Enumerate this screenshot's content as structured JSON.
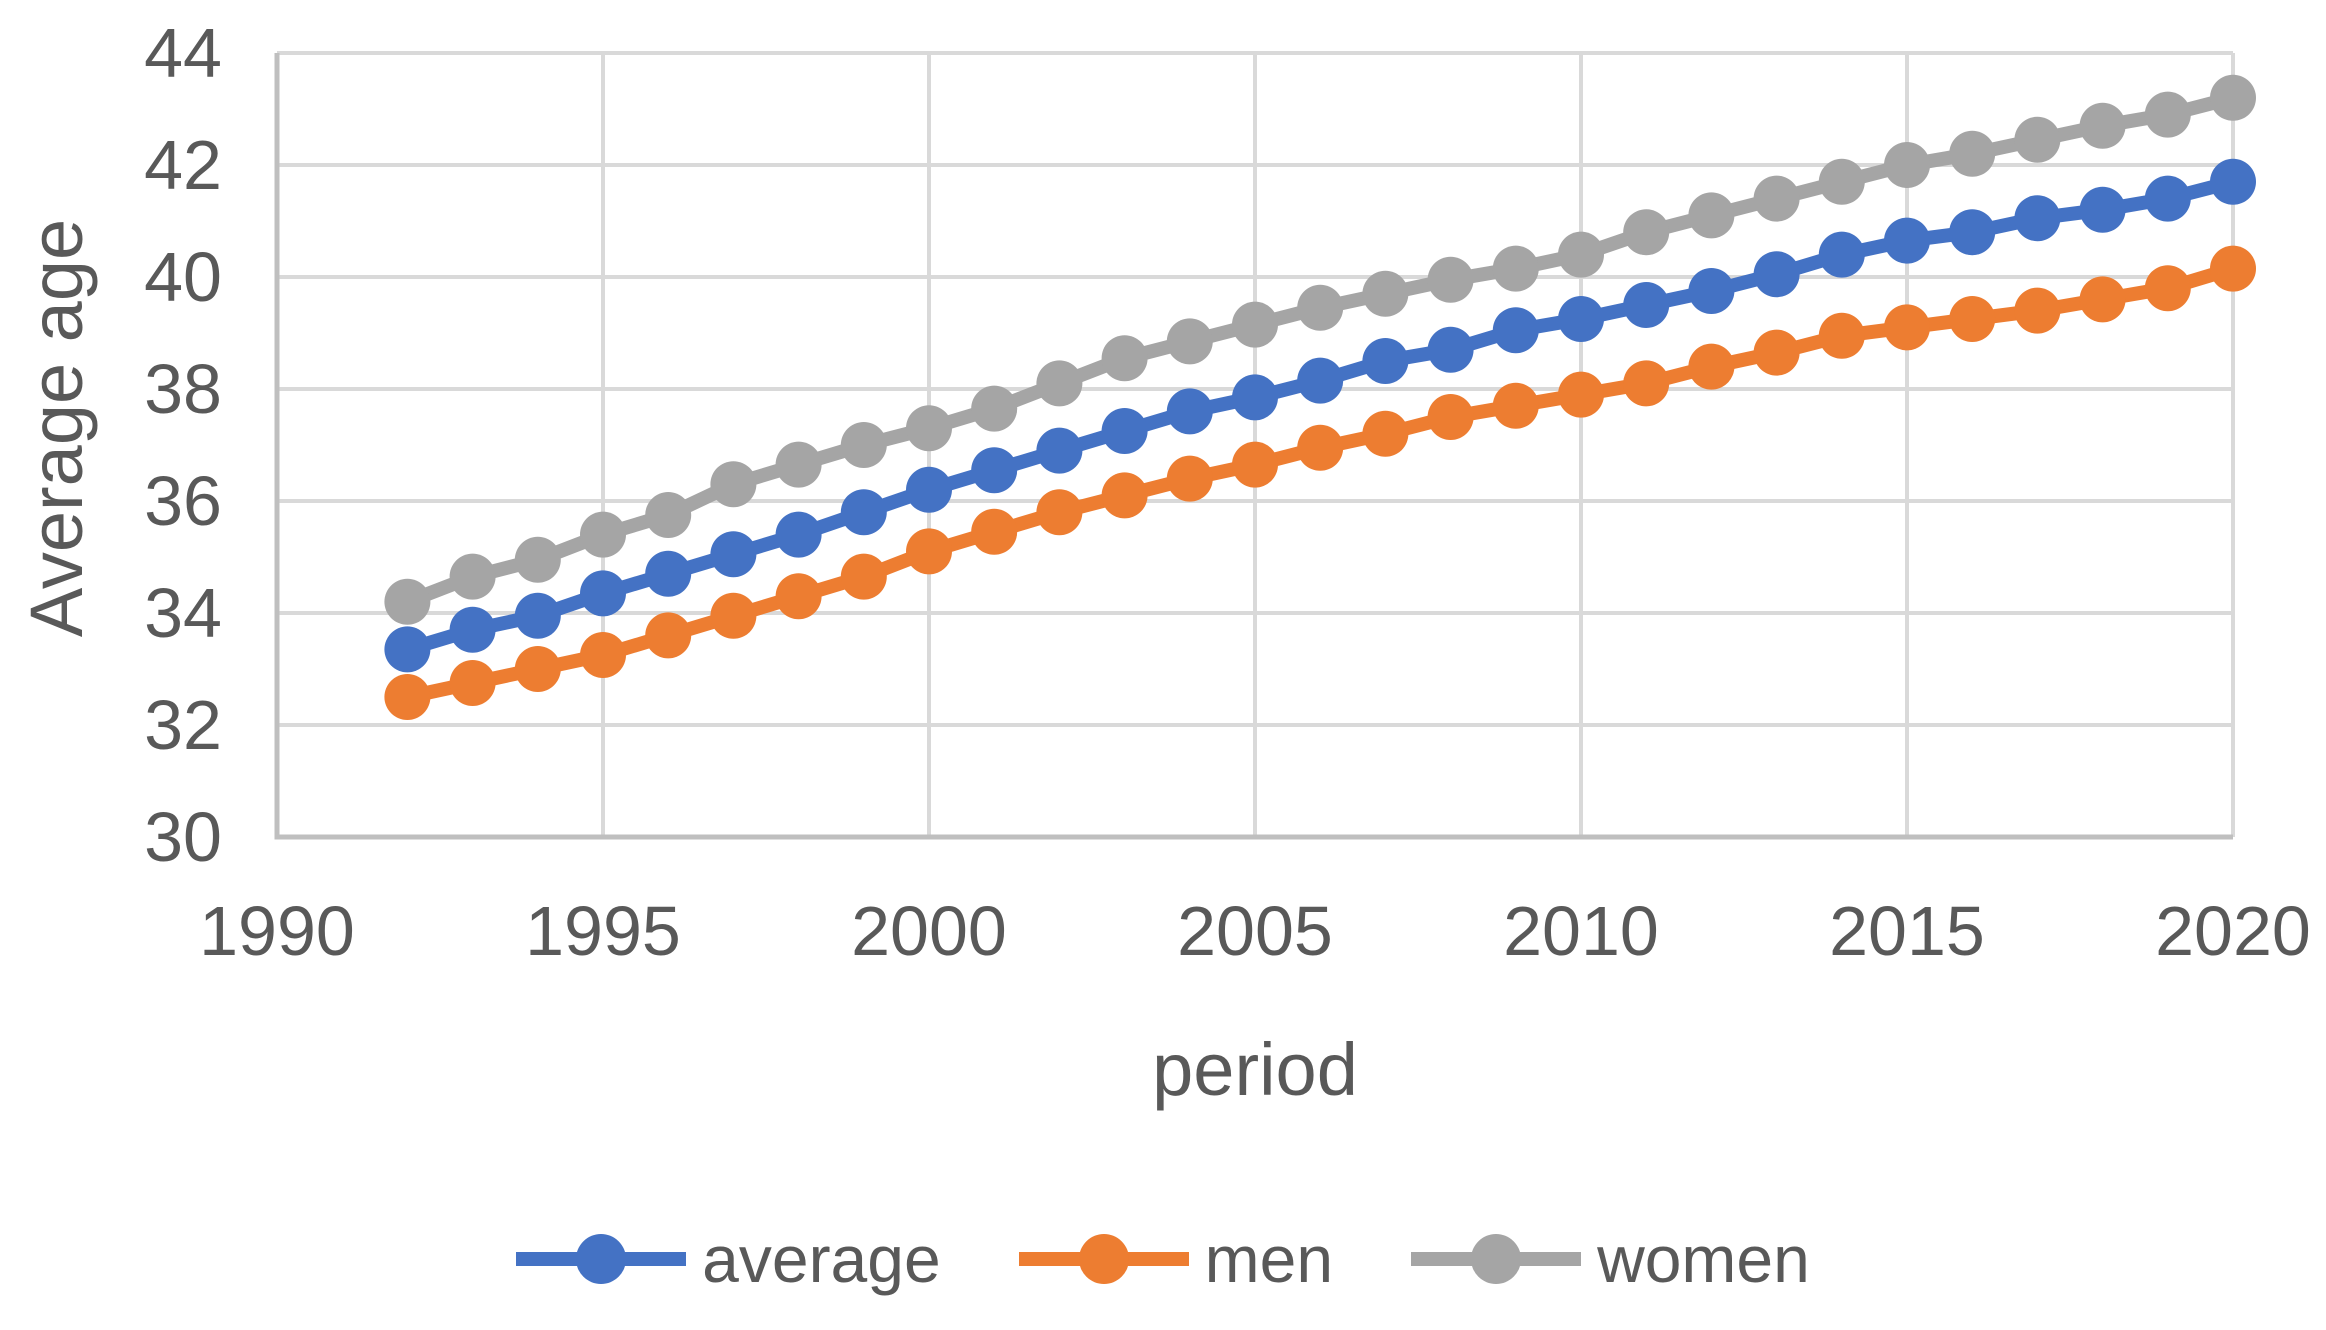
{
  "chart_data": {
    "type": "line",
    "title": "",
    "xlabel": "period",
    "ylabel": "Average age",
    "x": [
      1992,
      1993,
      1994,
      1995,
      1996,
      1997,
      1998,
      1999,
      2000,
      2001,
      2002,
      2003,
      2004,
      2005,
      2006,
      2007,
      2008,
      2009,
      2010,
      2011,
      2012,
      2013,
      2014,
      2015,
      2016,
      2017,
      2018,
      2019,
      2020
    ],
    "x_ticks": [
      1990,
      1995,
      2000,
      2005,
      2010,
      2015,
      2020
    ],
    "y_ticks": [
      30,
      32,
      34,
      36,
      38,
      40,
      42,
      44
    ],
    "xlim": [
      1990,
      2020
    ],
    "ylim": [
      30,
      44
    ],
    "grid": true,
    "legend_position": "bottom",
    "marker": "circle",
    "series": [
      {
        "name": "average",
        "color": "#4472C4",
        "values": [
          33.35,
          33.7,
          33.95,
          34.35,
          34.7,
          35.05,
          35.4,
          35.8,
          36.2,
          36.55,
          36.9,
          37.25,
          37.6,
          37.85,
          38.15,
          38.5,
          38.7,
          39.05,
          39.25,
          39.5,
          39.75,
          40.05,
          40.4,
          40.65,
          40.8,
          41.05,
          41.2,
          41.4,
          41.7
        ]
      },
      {
        "name": "men",
        "color": "#ED7D31",
        "values": [
          32.5,
          32.75,
          33.0,
          33.25,
          33.6,
          33.95,
          34.3,
          34.65,
          35.1,
          35.45,
          35.8,
          36.1,
          36.4,
          36.65,
          36.95,
          37.2,
          37.5,
          37.7,
          37.9,
          38.1,
          38.4,
          38.65,
          38.95,
          39.1,
          39.25,
          39.4,
          39.6,
          39.8,
          40.15
        ]
      },
      {
        "name": "women",
        "color": "#A5A5A5",
        "values": [
          34.2,
          34.65,
          34.95,
          35.4,
          35.75,
          36.3,
          36.65,
          37.0,
          37.3,
          37.65,
          38.1,
          38.55,
          38.85,
          39.15,
          39.45,
          39.7,
          39.95,
          40.15,
          40.4,
          40.8,
          41.1,
          41.4,
          41.7,
          42.0,
          42.2,
          42.45,
          42.7,
          42.9,
          43.2
        ]
      }
    ]
  },
  "colors": {
    "background": "#FFFFFF",
    "text": "#595959",
    "gridline": "#D9D9D9",
    "axis_line": "#BFBFBF"
  }
}
